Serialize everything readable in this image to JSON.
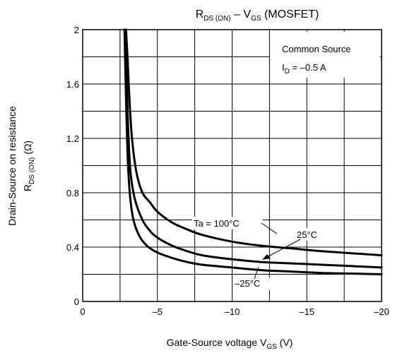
{
  "chart_data": {
    "type": "line",
    "title": {
      "main": "R",
      "sub1": "DS (ON)",
      "sep": " – V",
      "sub2": "GS",
      "tail": " (MOSFET)"
    },
    "xlabel": {
      "text": "Gate-Source voltage   V",
      "sub": "GS",
      "unit": "   (V)"
    },
    "ylabel": {
      "line1": "Drain-Source on resistance",
      "line2": {
        "main": "R",
        "sub": "DS (ON)",
        "unit": "    (Ω)"
      }
    },
    "xlim": [
      0,
      -20
    ],
    "ylim": [
      0,
      2
    ],
    "x_ticks": [
      0,
      -5,
      -10,
      -15,
      -20
    ],
    "x_tick_labels": [
      "0",
      "–5",
      "–10",
      "–15",
      "–20"
    ],
    "y_ticks": [
      0,
      0.4,
      0.8,
      1.2,
      1.6,
      2
    ],
    "y_tick_labels": [
      "0",
      "0.4",
      "0.8",
      "1.2",
      "1.6",
      "2"
    ],
    "grid": true,
    "conditions": {
      "line1": "Common Source",
      "line2": {
        "main": "I",
        "sub": "D",
        "rest": " = –0.5 A"
      }
    },
    "series": [
      {
        "name": "Ta = 100°C",
        "x": [
          -2.9,
          -3.0,
          -3.1,
          -3.3,
          -3.6,
          -4.0,
          -4.5,
          -5.0,
          -6.0,
          -7.0,
          -8.0,
          -10.0,
          -12.0,
          -14.0,
          -16.0,
          -18.0,
          -20.0
        ],
        "y": [
          2.0,
          1.8,
          1.55,
          1.2,
          0.95,
          0.8,
          0.73,
          0.66,
          0.58,
          0.53,
          0.49,
          0.44,
          0.41,
          0.39,
          0.37,
          0.355,
          0.34
        ]
      },
      {
        "name": "25°C",
        "x": [
          -2.85,
          -2.95,
          -3.05,
          -3.2,
          -3.5,
          -4.0,
          -4.5,
          -5.0,
          -6.0,
          -7.0,
          -8.0,
          -10.0,
          -12.0,
          -14.0,
          -16.0,
          -18.0,
          -20.0
        ],
        "y": [
          2.0,
          1.6,
          1.25,
          0.95,
          0.75,
          0.6,
          0.52,
          0.47,
          0.41,
          0.37,
          0.34,
          0.31,
          0.29,
          0.28,
          0.27,
          0.26,
          0.25
        ]
      },
      {
        "name": "–25°C",
        "x": [
          -2.8,
          -2.9,
          -3.0,
          -3.15,
          -3.4,
          -3.8,
          -4.3,
          -5.0,
          -6.0,
          -7.0,
          -8.0,
          -10.0,
          -12.0,
          -14.0,
          -16.0,
          -18.0,
          -20.0
        ],
        "y": [
          2.0,
          1.5,
          1.1,
          0.8,
          0.6,
          0.48,
          0.41,
          0.36,
          0.32,
          0.29,
          0.27,
          0.25,
          0.23,
          0.22,
          0.21,
          0.205,
          0.2
        ]
      }
    ]
  }
}
